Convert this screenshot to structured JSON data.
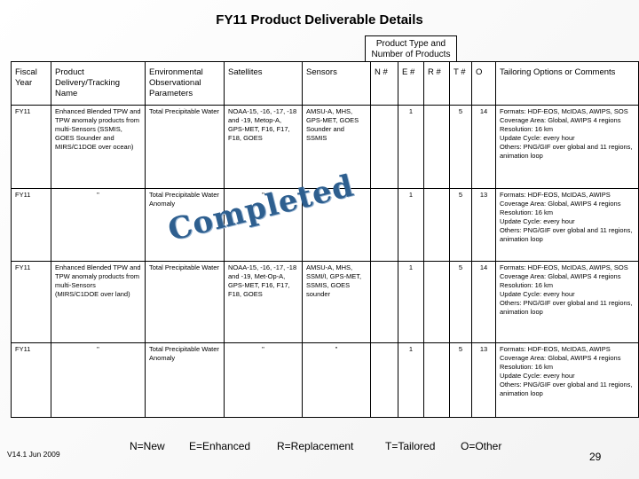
{
  "title": "FY11 Product Deliverable Details",
  "product_type_header": "Product Type and Number of Products",
  "columns": [
    "Fiscal Year",
    "Product Delivery/Tracking Name",
    "Environmental Observational Parameters",
    "Satellites",
    "Sensors",
    "N #",
    "E #",
    "R #",
    "T #",
    "O",
    "Tailoring Options or Comments"
  ],
  "rows": [
    {
      "fy": "FY11",
      "product": "Enhanced Blended TPW and TPW anomaly products from multi-Sensors (SSMIS, GOES Sounder and MIRS/C1DOE over ocean)",
      "param": "Total Precipitable Water",
      "satellites": "NOAA-15, -16, -17, -18 and -19, Metop-A, GPS-MET, F16, F17, F18, GOES",
      "sensors": "AMSU-A, MHS, GPS-MET, GOES Sounder and SSMIS",
      "n": "",
      "e": "1",
      "r": "",
      "t": "5",
      "o": "14",
      "comments": [
        "Formats: HDF-EOS, McIDAS, AWIPS, SOS",
        "Coverage Area: Global, AWIPS 4 regions",
        "Resolution: 16 km",
        "Update Cycle: every hour",
        "Others: PNG/GIF over global and 11 regions, animation loop"
      ]
    },
    {
      "fy": "FY11",
      "product": "\"",
      "param": "Total Precipitable Water Anomaly",
      "satellites": "\"",
      "sensors": "\"",
      "n": "",
      "e": "1",
      "r": "",
      "t": "5",
      "o": "13",
      "comments": [
        "Formats: HDF-EOS, McIDAS, AWIPS",
        "Coverage Area: Global, AWIPS 4 regions",
        "Resolution: 16 km",
        "Update Cycle: every hour",
        "Others: PNG/GIF over global and 11 regions, animation loop"
      ]
    },
    {
      "fy": "FY11",
      "product": "Enhanced Blended TPW and TPW anomaly products from multi-Sensors (MIRS/C1DOE over land)",
      "param": "Total Precipitable Water",
      "satellites": "NOAA-15, -16, -17, -18 and -19, Met-Op-A, GPS-MET, F16, F17, F18, GOES",
      "sensors": "AMSU-A, MHS, SSMI/I, GPS-MET, SSMIS, GOES sounder",
      "n": "",
      "e": "1",
      "r": "",
      "t": "5",
      "o": "14",
      "comments": [
        "Formats: HDF-EOS, McIDAS, AWIPS, SOS",
        "Coverage Area: Global, AWIPS 4 regions",
        "Resolution: 16 km",
        "Update Cycle: every hour",
        "Others: PNG/GIF over global and 11 regions, animation loop"
      ]
    },
    {
      "fy": "FY11",
      "product": "\"",
      "param": "Total Precipitable Water Anomaly",
      "satellites": "\"",
      "sensors": "\"",
      "n": "",
      "e": "1",
      "r": "",
      "t": "5",
      "o": "13",
      "comments": [
        "Formats: HDF-EOS, McIDAS, AWIPS",
        "Coverage Area: Global, AWIPS 4 regions",
        "Resolution: 16 km",
        "Update Cycle: every hour",
        "Others: PNG/GIF over global and 11 regions, animation loop"
      ]
    }
  ],
  "stamp": "Completed",
  "legend": [
    "N=New",
    "E=Enhanced",
    "R=Replacement",
    "T=Tailored",
    "O=Other"
  ],
  "version": "V14.1 Jun 2009",
  "page_number": "29"
}
